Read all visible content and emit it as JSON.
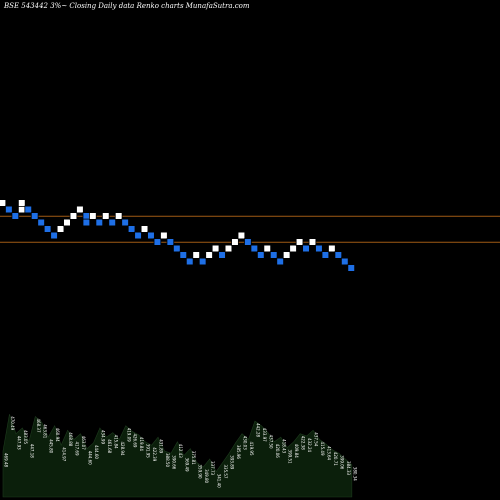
{
  "chart_data": {
    "type": "renko",
    "title": "BSE 543442  3%~  Closing Daily data  Renko  charts MunafaSutra.com",
    "colors": {
      "background": "#000000",
      "up_brick": "#ffffff",
      "down_brick": "#1e6fe6",
      "brick_border": "#000000",
      "reference_line": "#a05a14",
      "volume_fill": "#0b1f0b",
      "volume_label": "#ffffff"
    },
    "y_range": [
      190,
      210
    ],
    "bricks": [
      {
        "idx": 0,
        "dir": "up",
        "level": 204
      },
      {
        "idx": 1,
        "dir": "down",
        "level": 203
      },
      {
        "idx": 2,
        "dir": "down",
        "level": 202
      },
      {
        "idx": 3,
        "dir": "up",
        "level": 203
      },
      {
        "idx": 3,
        "dir": "up",
        "level": 204
      },
      {
        "idx": 4,
        "dir": "down",
        "level": 203
      },
      {
        "idx": 5,
        "dir": "down",
        "level": 202
      },
      {
        "idx": 6,
        "dir": "down",
        "level": 201
      },
      {
        "idx": 7,
        "dir": "down",
        "level": 200
      },
      {
        "idx": 8,
        "dir": "down",
        "level": 199
      },
      {
        "idx": 9,
        "dir": "up",
        "level": 200
      },
      {
        "idx": 10,
        "dir": "up",
        "level": 201
      },
      {
        "idx": 11,
        "dir": "up",
        "level": 202
      },
      {
        "idx": 12,
        "dir": "up",
        "level": 203
      },
      {
        "idx": 13,
        "dir": "down",
        "level": 202
      },
      {
        "idx": 13,
        "dir": "down",
        "level": 201
      },
      {
        "idx": 14,
        "dir": "up",
        "level": 202
      },
      {
        "idx": 15,
        "dir": "down",
        "level": 201
      },
      {
        "idx": 16,
        "dir": "up",
        "level": 202
      },
      {
        "idx": 17,
        "dir": "down",
        "level": 201
      },
      {
        "idx": 18,
        "dir": "up",
        "level": 202
      },
      {
        "idx": 19,
        "dir": "down",
        "level": 201
      },
      {
        "idx": 20,
        "dir": "down",
        "level": 200
      },
      {
        "idx": 21,
        "dir": "down",
        "level": 199
      },
      {
        "idx": 22,
        "dir": "up",
        "level": 200
      },
      {
        "idx": 23,
        "dir": "down",
        "level": 199
      },
      {
        "idx": 24,
        "dir": "down",
        "level": 198
      },
      {
        "idx": 25,
        "dir": "up",
        "level": 199
      },
      {
        "idx": 26,
        "dir": "down",
        "level": 198
      },
      {
        "idx": 27,
        "dir": "down",
        "level": 197
      },
      {
        "idx": 28,
        "dir": "down",
        "level": 196
      },
      {
        "idx": 29,
        "dir": "down",
        "level": 195
      },
      {
        "idx": 30,
        "dir": "up",
        "level": 196
      },
      {
        "idx": 31,
        "dir": "down",
        "level": 195
      },
      {
        "idx": 32,
        "dir": "up",
        "level": 196
      },
      {
        "idx": 33,
        "dir": "up",
        "level": 197
      },
      {
        "idx": 34,
        "dir": "down",
        "level": 196
      },
      {
        "idx": 35,
        "dir": "up",
        "level": 197
      },
      {
        "idx": 36,
        "dir": "up",
        "level": 198
      },
      {
        "idx": 37,
        "dir": "up",
        "level": 199
      },
      {
        "idx": 38,
        "dir": "down",
        "level": 198
      },
      {
        "idx": 39,
        "dir": "down",
        "level": 197
      },
      {
        "idx": 40,
        "dir": "down",
        "level": 196
      },
      {
        "idx": 41,
        "dir": "up",
        "level": 197
      },
      {
        "idx": 42,
        "dir": "down",
        "level": 196
      },
      {
        "idx": 43,
        "dir": "down",
        "level": 195
      },
      {
        "idx": 44,
        "dir": "up",
        "level": 196
      },
      {
        "idx": 45,
        "dir": "up",
        "level": 197
      },
      {
        "idx": 46,
        "dir": "up",
        "level": 198
      },
      {
        "idx": 47,
        "dir": "down",
        "level": 197
      },
      {
        "idx": 48,
        "dir": "up",
        "level": 198
      },
      {
        "idx": 49,
        "dir": "down",
        "level": 197
      },
      {
        "idx": 50,
        "dir": "down",
        "level": 196
      },
      {
        "idx": 51,
        "dir": "up",
        "level": 197
      },
      {
        "idx": 52,
        "dir": "down",
        "level": 196
      },
      {
        "idx": 53,
        "dir": "down",
        "level": 195
      },
      {
        "idx": 54,
        "dir": "down",
        "level": 194
      }
    ],
    "reference_lines": [
      202.5,
      198.5
    ],
    "volume": [
      40,
      72,
      55,
      60,
      48,
      70,
      65,
      52,
      62,
      45,
      58,
      50,
      55,
      42,
      47,
      60,
      52,
      56,
      50,
      62,
      57,
      54,
      48,
      45,
      52,
      40,
      38,
      48,
      36,
      42,
      30,
      26,
      33,
      22,
      30,
      38,
      47,
      55,
      50,
      66,
      62,
      56,
      48,
      52,
      43,
      48,
      55,
      53,
      58,
      50,
      46,
      41,
      38,
      33,
      28
    ],
    "volume_labels": [
      "469.48",
      "470.49",
      "447.93",
      "483.05",
      "447.18",
      "468.37",
      "463.81",
      "445.80",
      "460.94",
      "414.97",
      "468.88",
      "417.69",
      "463.07",
      "444.60",
      "444.60",
      "434.99",
      "461.68",
      "415.84",
      "428.94",
      "419.09",
      "426.69",
      "419.84",
      "391.95",
      "422.39",
      "431.89",
      "388.50",
      "390.66",
      "412.43",
      "369.49",
      "375.81",
      "359.90",
      "349.80",
      "337.73",
      "341.40",
      "335.57",
      "393.89",
      "385.96",
      "430.03",
      "419.95",
      "442.28",
      "433.97",
      "437.50",
      "420.06",
      "418.43",
      "399.51",
      "409.84",
      "422.38",
      "432.24",
      "437.54",
      "415.49",
      "413.64",
      "420.71",
      "399.06",
      "384.33",
      "380.34"
    ]
  }
}
